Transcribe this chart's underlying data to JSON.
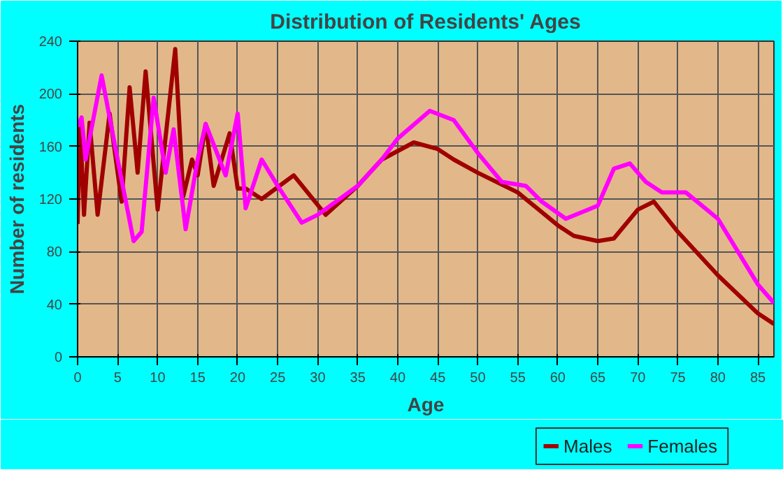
{
  "chart_data": {
    "type": "line",
    "title": "Distribution of Residents' Ages",
    "xlabel": "Age",
    "ylabel": "Number of residents",
    "xlim": [
      0,
      87
    ],
    "xticks": [
      0,
      5,
      10,
      15,
      20,
      25,
      30,
      35,
      40,
      45,
      50,
      55,
      60,
      65,
      70,
      75,
      80,
      85
    ],
    "ylim": [
      0,
      240
    ],
    "yticks": [
      0,
      40,
      80,
      120,
      160,
      200,
      240
    ],
    "grid": true,
    "legend": "bottom right",
    "marker": "none",
    "line_style": "solid",
    "series": [
      {
        "name": "Males",
        "color": "#a00000",
        "x": [
          0,
          0.3,
          0.8,
          1.5,
          2.5,
          4,
          5.5,
          6.5,
          7.5,
          8.5,
          10,
          12.2,
          13.2,
          14.3,
          15,
          16,
          17,
          19,
          20,
          21,
          23,
          27,
          31,
          35,
          38,
          42,
          45,
          47,
          50,
          55,
          60,
          62,
          65,
          67,
          70,
          72,
          75,
          80,
          85,
          87
        ],
        "values": [
          101,
          178,
          108,
          178,
          108,
          185,
          118,
          205,
          140,
          217,
          112,
          234,
          122,
          150,
          138,
          177,
          130,
          170,
          128,
          128,
          120,
          138,
          108,
          130,
          150,
          163,
          158,
          150,
          140,
          125,
          100,
          92,
          88,
          90,
          112,
          118,
          95,
          62,
          33,
          25
        ]
      },
      {
        "name": "Females",
        "color": "#ff00ff",
        "x": [
          0,
          0.5,
          1,
          3,
          5,
          7,
          8,
          9.5,
          11,
          12,
          13.5,
          15,
          16,
          18.5,
          20,
          21,
          23,
          25,
          28,
          30,
          35,
          38,
          40,
          44,
          47,
          50,
          53,
          56,
          58,
          61,
          65,
          67,
          69,
          71,
          73,
          76,
          80,
          85,
          87
        ],
        "values": [
          175,
          182,
          150,
          214,
          150,
          88,
          95,
          197,
          140,
          173,
          97,
          150,
          177,
          138,
          185,
          113,
          150,
          130,
          102,
          108,
          130,
          150,
          166,
          187,
          180,
          155,
          133,
          130,
          118,
          105,
          115,
          143,
          147,
          133,
          125,
          125,
          105,
          55,
          41
        ]
      }
    ]
  }
}
